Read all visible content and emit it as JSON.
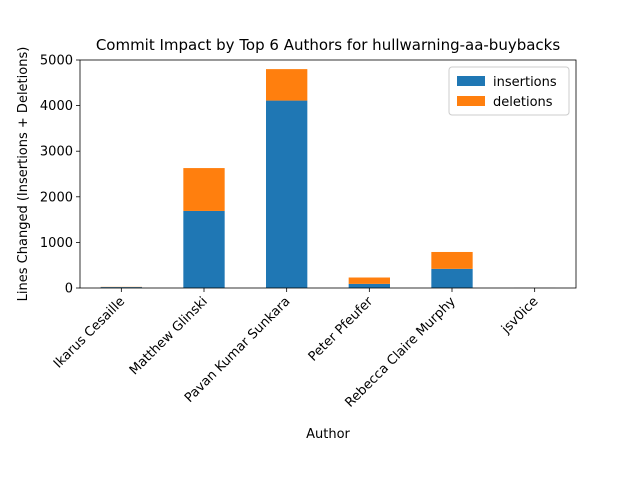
{
  "chart_data": {
    "type": "bar",
    "stacked": true,
    "title": "Commit Impact by Top 6 Authors for hullwarning-aa-buybacks",
    "xlabel": "Author",
    "ylabel": "Lines Changed (Insertions + Deletions)",
    "ylim": [
      0,
      5000
    ],
    "yticks": [
      0,
      1000,
      2000,
      3000,
      4000,
      5000
    ],
    "categories": [
      "Ikarus Cesaille",
      "Matthew Glinski",
      "Pavan Kumar Sunkara",
      "Peter Pfeufer",
      "Rebecca Claire Murphy",
      "jsv0ice"
    ],
    "series": [
      {
        "name": "insertions",
        "color": "#1f77b4",
        "values": [
          20,
          1690,
          4110,
          90,
          420,
          2
        ]
      },
      {
        "name": "deletions",
        "color": "#ff7f0e",
        "values": [
          5,
          940,
          690,
          140,
          370,
          1
        ]
      }
    ],
    "legend_position": "top-right",
    "grid": false
  }
}
